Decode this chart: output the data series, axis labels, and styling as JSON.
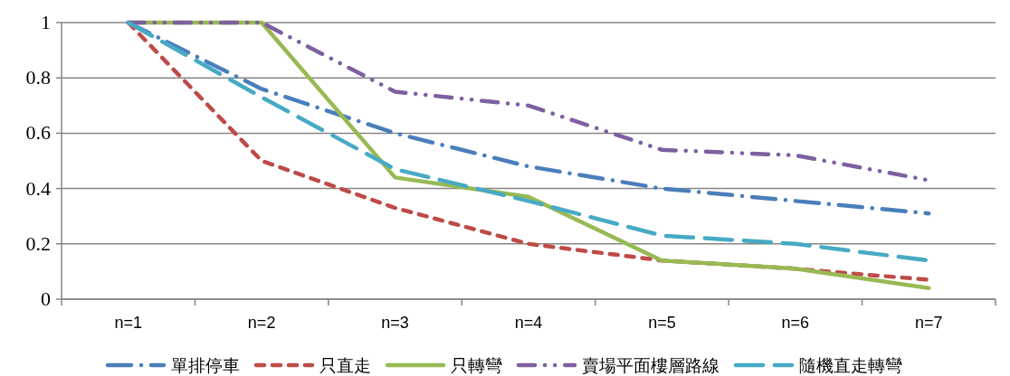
{
  "chart_data": {
    "type": "line",
    "categories": [
      "n=1",
      "n=2",
      "n=3",
      "n=4",
      "n=5",
      "n=6",
      "n=7"
    ],
    "series": [
      {
        "name": "單排停車",
        "color": "#4a7ebb",
        "line_style": "dashdot",
        "values": [
          1,
          0.76,
          0.6,
          0.48,
          0.4,
          0.355,
          0.31
        ]
      },
      {
        "name": "只直走",
        "color": "#be4b48",
        "line_style": "dashed",
        "values": [
          1,
          0.5,
          0.33,
          0.2,
          0.14,
          0.11,
          0.07
        ]
      },
      {
        "name": "只轉彎",
        "color": "#98b954",
        "line_style": "solid",
        "values": [
          1,
          1,
          0.44,
          0.37,
          0.14,
          0.11,
          0.04
        ]
      },
      {
        "name": "賣場平面樓層路線",
        "color": "#7d60a0",
        "line_style": "dashdotdot",
        "values": [
          1,
          1,
          0.75,
          0.7,
          0.54,
          0.52,
          0.43
        ]
      },
      {
        "name": "隨機直走轉彎",
        "color": "#46aac5",
        "line_style": "longdash",
        "values": [
          1,
          0.73,
          0.47,
          0.355,
          0.23,
          0.2,
          0.14
        ]
      }
    ],
    "ylim": [
      0,
      1
    ],
    "yticks": [
      0,
      0.2,
      0.4,
      0.6,
      0.8,
      1
    ],
    "grid": "y",
    "legend": "bottom"
  }
}
